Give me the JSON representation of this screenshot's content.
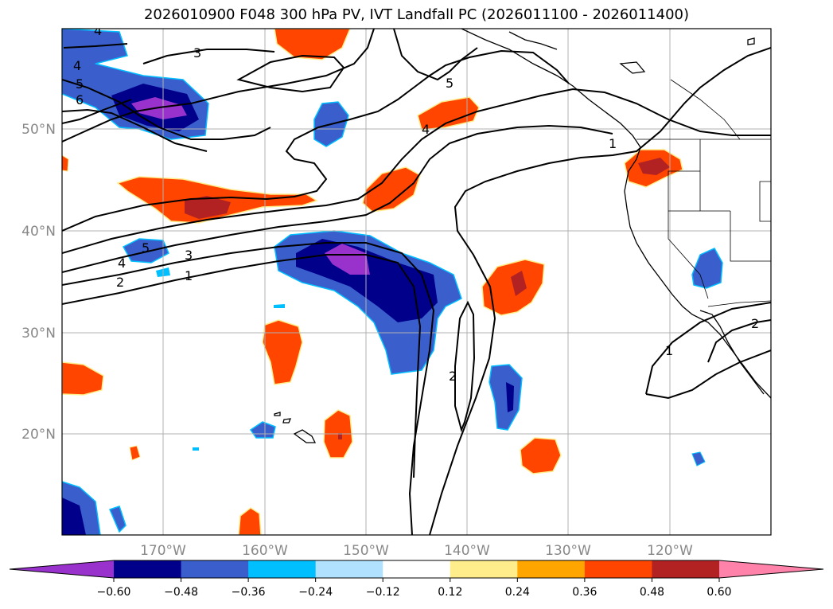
{
  "title": "2026010900 F048 300 hPa PV, IVT Landfall PC (2026011100 - 2026011400)",
  "axes": {
    "lat_labels": [
      "50°N",
      "40°N",
      "30°N",
      "20°N"
    ],
    "lon_labels": [
      "170°W",
      "160°W",
      "150°W",
      "140°W",
      "130°W",
      "120°W"
    ]
  },
  "colorbar": {
    "tick_labels": [
      "−0.60",
      "−0.48",
      "−0.36",
      "−0.24",
      "−0.12",
      "0.12",
      "0.24",
      "0.36",
      "0.48",
      "0.60"
    ],
    "colors": [
      "#9932cc",
      "#00008b",
      "#3a5fcd",
      "#00bfff",
      "#b0e2ff",
      "#ffffff",
      "#ffec8b",
      "#ffa500",
      "#ff4500",
      "#b22222",
      "#ff82ab"
    ]
  },
  "contour_labels": [
    "4",
    "3",
    "4",
    "5",
    "6",
    "5",
    "4",
    "1",
    "5",
    "4",
    "3",
    "2",
    "1",
    "2",
    "1",
    "2"
  ],
  "colors": {
    "grid": "#b0b0b0",
    "axis_text": "#888888"
  }
}
